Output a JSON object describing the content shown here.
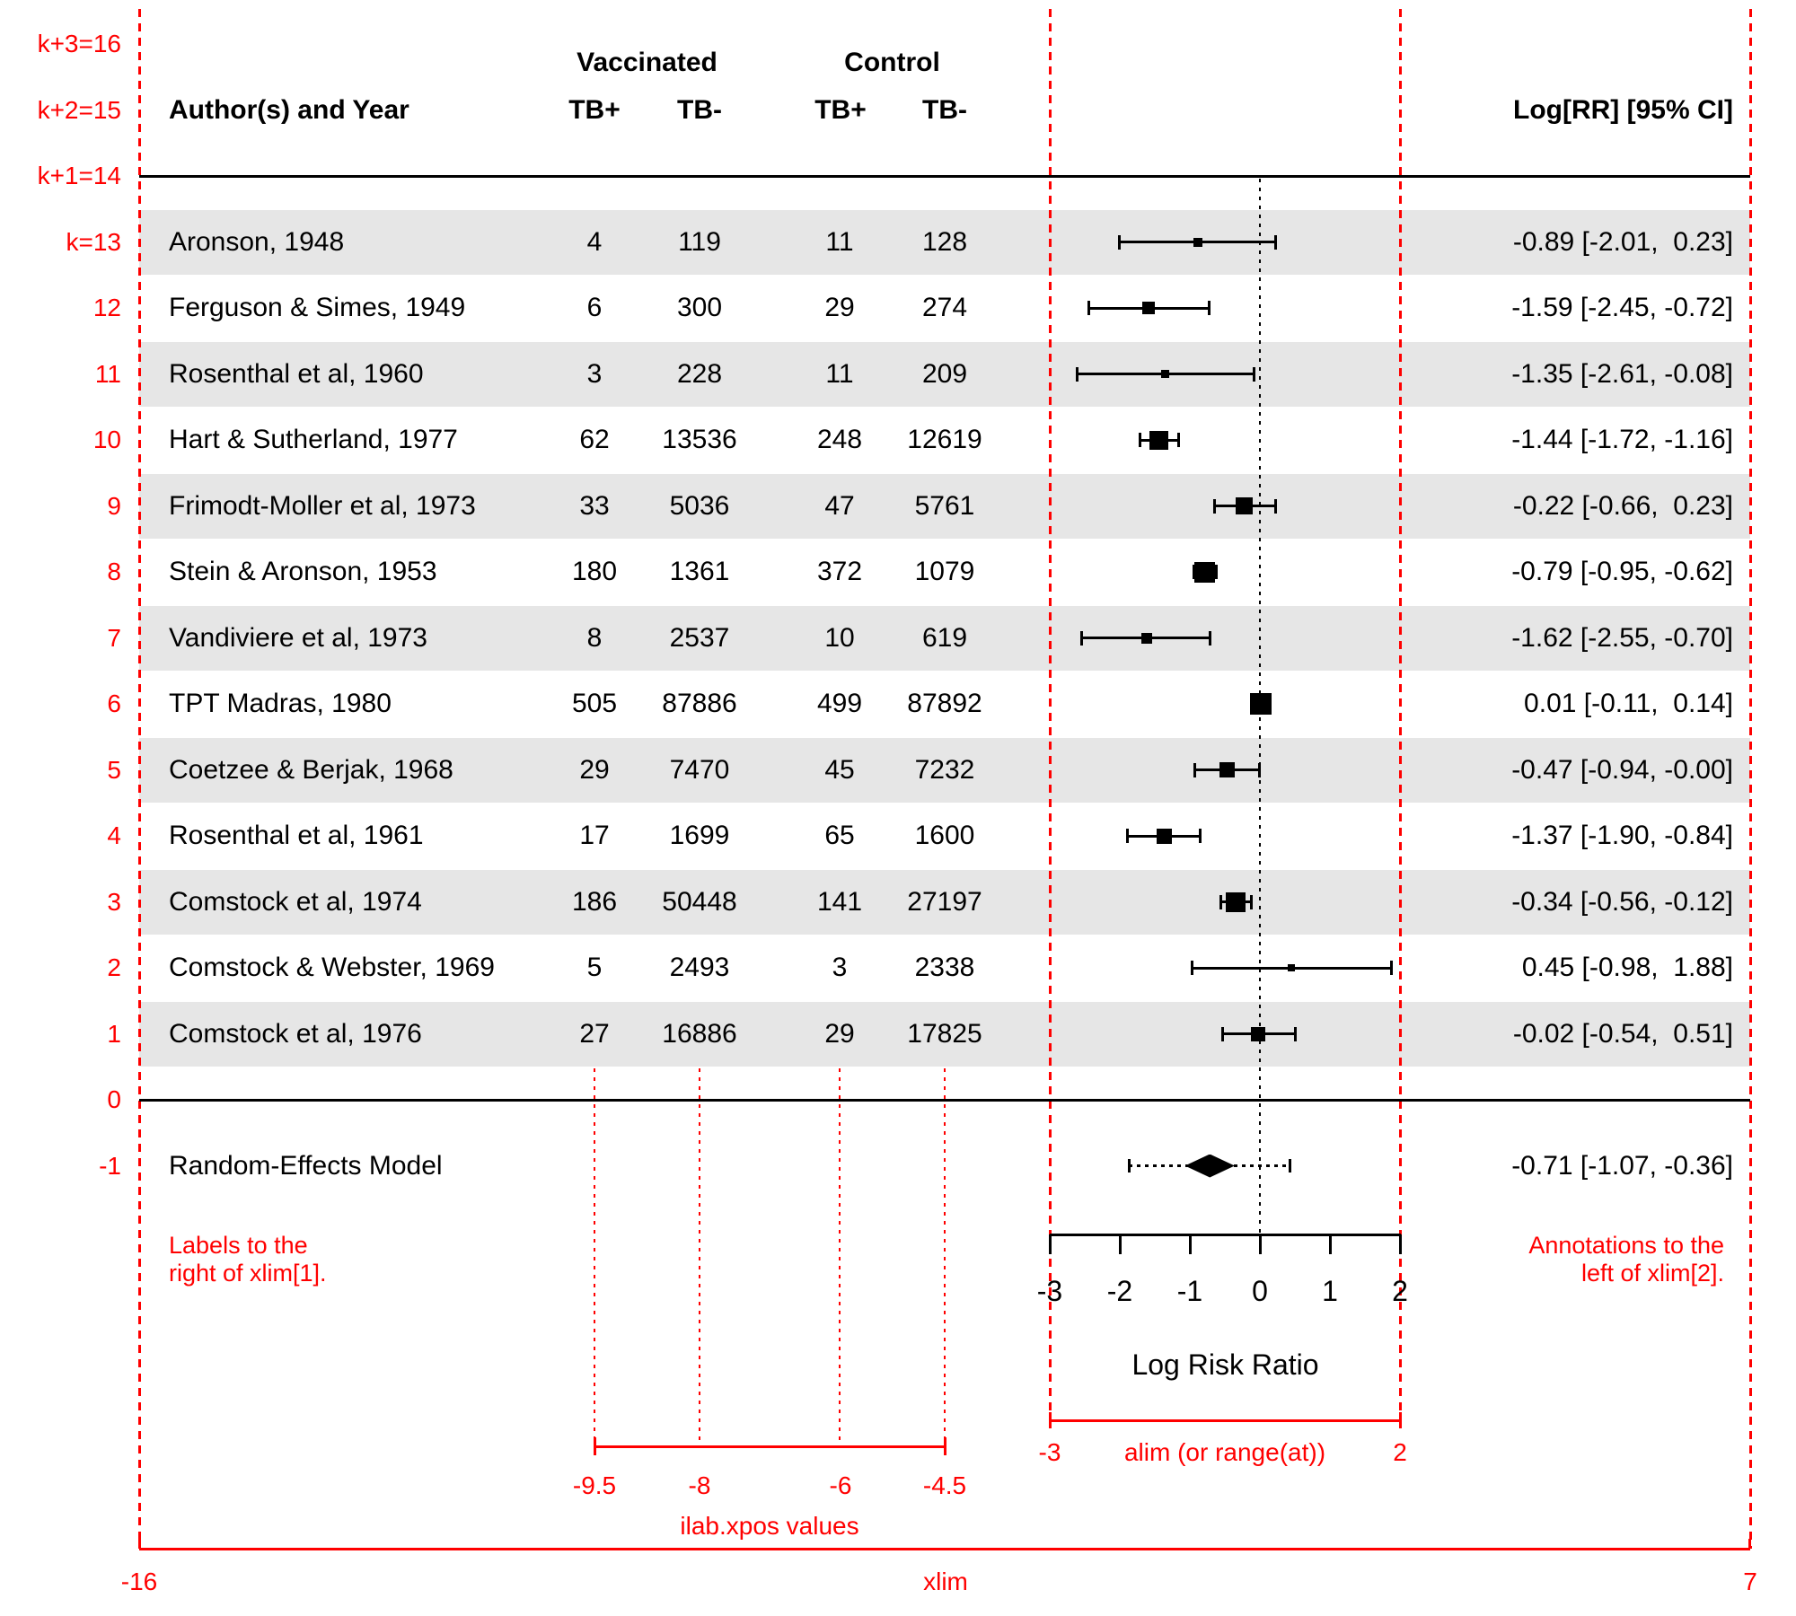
{
  "chart_data": {
    "type": "scatter",
    "subtype": "forest-plot-meta-analysis",
    "xlabel": "Log Risk Ratio",
    "x_ticks": [
      -3,
      -2,
      -1,
      0,
      1,
      2
    ],
    "alim": [
      -3,
      2
    ],
    "xlim": [
      -16,
      7
    ],
    "ilab_xpos": [
      -9.5,
      -8,
      -6,
      -4.5
    ],
    "reference_line": 0,
    "studies": [
      {
        "k": 13,
        "author": "Aronson, 1948",
        "vac_tb_pos": "4",
        "vac_tb_neg": "119",
        "con_tb_pos": "11",
        "con_tb_neg": "128",
        "est": -0.89,
        "ci_lb": -2.01,
        "ci_ub": 0.23,
        "annotation": "-0.89 [-2.01,  0.23]",
        "psize": 10
      },
      {
        "k": 12,
        "author": "Ferguson & Simes, 1949",
        "vac_tb_pos": "6",
        "vac_tb_neg": "300",
        "con_tb_pos": "29",
        "con_tb_neg": "274",
        "est": -1.59,
        "ci_lb": -2.45,
        "ci_ub": -0.72,
        "annotation": "-1.59 [-2.45, -0.72]",
        "psize": 14
      },
      {
        "k": 11,
        "author": "Rosenthal et al, 1960",
        "vac_tb_pos": "3",
        "vac_tb_neg": "228",
        "con_tb_pos": "11",
        "con_tb_neg": "209",
        "est": -1.35,
        "ci_lb": -2.61,
        "ci_ub": -0.08,
        "annotation": "-1.35 [-2.61, -0.08]",
        "psize": 9
      },
      {
        "k": 10,
        "author": "Hart & Sutherland, 1977",
        "vac_tb_pos": "62",
        "vac_tb_neg": "13536",
        "con_tb_pos": "248",
        "con_tb_neg": "12619",
        "est": -1.44,
        "ci_lb": -1.72,
        "ci_ub": -1.16,
        "annotation": "-1.44 [-1.72, -1.16]",
        "psize": 21
      },
      {
        "k": 9,
        "author": "Frimodt-Moller et al, 1973",
        "vac_tb_pos": "33",
        "vac_tb_neg": "5036",
        "con_tb_pos": "47",
        "con_tb_neg": "5761",
        "est": -0.22,
        "ci_lb": -0.66,
        "ci_ub": 0.23,
        "annotation": "-0.22 [-0.66,  0.23]",
        "psize": 19
      },
      {
        "k": 8,
        "author": "Stein & Aronson, 1953",
        "vac_tb_pos": "180",
        "vac_tb_neg": "1361",
        "con_tb_pos": "372",
        "con_tb_neg": "1079",
        "est": -0.79,
        "ci_lb": -0.95,
        "ci_ub": -0.62,
        "annotation": "-0.79 [-0.95, -0.62]",
        "psize": 23
      },
      {
        "k": 7,
        "author": "Vandiviere et al, 1973",
        "vac_tb_pos": "8",
        "vac_tb_neg": "2537",
        "con_tb_pos": "10",
        "con_tb_neg": "619",
        "est": -1.62,
        "ci_lb": -2.55,
        "ci_ub": -0.7,
        "annotation": "-1.62 [-2.55, -0.70]",
        "psize": 12
      },
      {
        "k": 6,
        "author": "TPT Madras, 1980",
        "vac_tb_pos": "505",
        "vac_tb_neg": "87886",
        "con_tb_pos": "499",
        "con_tb_neg": "87892",
        "est": 0.01,
        "ci_lb": -0.11,
        "ci_ub": 0.14,
        "annotation": " 0.01 [-0.11,  0.14]",
        "psize": 24
      },
      {
        "k": 5,
        "author": "Coetzee & Berjak, 1968",
        "vac_tb_pos": "29",
        "vac_tb_neg": "7470",
        "con_tb_pos": "45",
        "con_tb_neg": "7232",
        "est": -0.47,
        "ci_lb": -0.94,
        "ci_ub": 0.0,
        "annotation": "-0.47 [-0.94, -0.00]",
        "psize": 17
      },
      {
        "k": 4,
        "author": "Rosenthal et al, 1961",
        "vac_tb_pos": "17",
        "vac_tb_neg": "1699",
        "con_tb_pos": "65",
        "con_tb_neg": "1600",
        "est": -1.37,
        "ci_lb": -1.9,
        "ci_ub": -0.84,
        "annotation": "-1.37 [-1.90, -0.84]",
        "psize": 17
      },
      {
        "k": 3,
        "author": "Comstock et al, 1974",
        "vac_tb_pos": "186",
        "vac_tb_neg": "50448",
        "con_tb_pos": "141",
        "con_tb_neg": "27197",
        "est": -0.34,
        "ci_lb": -0.56,
        "ci_ub": -0.12,
        "annotation": "-0.34 [-0.56, -0.12]",
        "psize": 22
      },
      {
        "k": 2,
        "author": "Comstock & Webster, 1969",
        "vac_tb_pos": "5",
        "vac_tb_neg": "2493",
        "con_tb_pos": "3",
        "con_tb_neg": "2338",
        "est": 0.45,
        "ci_lb": -0.98,
        "ci_ub": 1.88,
        "annotation": " 0.45 [-0.98,  1.88]",
        "psize": 8
      },
      {
        "k": 1,
        "author": "Comstock et al, 1976",
        "vac_tb_pos": "27",
        "vac_tb_neg": "16886",
        "con_tb_pos": "29",
        "con_tb_neg": "17825",
        "est": -0.02,
        "ci_lb": -0.54,
        "ci_ub": 0.51,
        "annotation": "-0.02 [-0.54,  0.51]",
        "psize": 16
      }
    ],
    "summary": {
      "row": -1,
      "label": "Random-Effects Model",
      "est": -0.71,
      "ci_lb": -1.07,
      "ci_ub": -0.36,
      "pi_lb": -1.87,
      "pi_ub": 0.44,
      "annotation": "-0.71 [-1.07, -0.36]"
    }
  },
  "header": {
    "author": "Author(s) and Year",
    "group1": "Vaccinated",
    "group2": "Control",
    "col1": "TB+",
    "col2": "TB-",
    "col3": "TB+",
    "col4": "TB-",
    "annotation": "Log[RR] [95% CI]"
  },
  "guides": {
    "row_labels": [
      {
        "row": 16,
        "label": "k+3=16"
      },
      {
        "row": 15,
        "label": "k+2=15"
      },
      {
        "row": 14,
        "label": "k+1=14"
      },
      {
        "row": 13,
        "label": "k=13"
      },
      {
        "row": 12,
        "label": "12"
      },
      {
        "row": 11,
        "label": "11"
      },
      {
        "row": 10,
        "label": "10"
      },
      {
        "row": 9,
        "label": "9"
      },
      {
        "row": 8,
        "label": "8"
      },
      {
        "row": 7,
        "label": "7"
      },
      {
        "row": 6,
        "label": "6"
      },
      {
        "row": 5,
        "label": "5"
      },
      {
        "row": 4,
        "label": "4"
      },
      {
        "row": 3,
        "label": "3"
      },
      {
        "row": 2,
        "label": "2"
      },
      {
        "row": 1,
        "label": "1"
      },
      {
        "row": 0,
        "label": "0"
      },
      {
        "row": -1,
        "label": "-1"
      }
    ],
    "left_note": [
      "Labels to the",
      "right of xlim[1]."
    ],
    "right_note": [
      "Annotations to the",
      "left of xlim[2]."
    ],
    "alim_axis": {
      "left": "-3",
      "right": "2",
      "label": "alim (or range(at))"
    },
    "ilab_axis": {
      "labels": [
        "-9.5",
        "-8",
        "-6",
        "-4.5"
      ],
      "label": "ilab.xpos values"
    },
    "xlim_axis": {
      "left": "-16",
      "right": "7",
      "label": "xlim"
    }
  },
  "colors": {
    "red": "#FF0000",
    "band": "#E6E6E6",
    "text": "#000000"
  }
}
